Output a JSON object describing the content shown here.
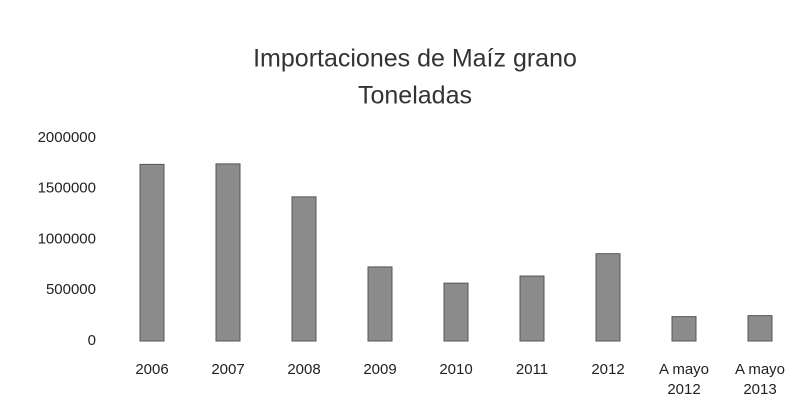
{
  "chart_data": {
    "type": "bar",
    "title": "Importaciones de Maíz grano",
    "subtitle": "Toneladas",
    "categories": [
      "2006",
      "2007",
      "2008",
      "2009",
      "2010",
      "2011",
      "2012",
      "A mayo 2012",
      "A mayo 2013"
    ],
    "values": [
      1740000,
      1745000,
      1420000,
      730000,
      570000,
      640000,
      860000,
      240000,
      250000
    ],
    "color": "#8c8c8c",
    "ylim": [
      0,
      2000000
    ],
    "yticks": [
      0,
      500000,
      1000000,
      1500000,
      2000000
    ],
    "grid": false
  }
}
